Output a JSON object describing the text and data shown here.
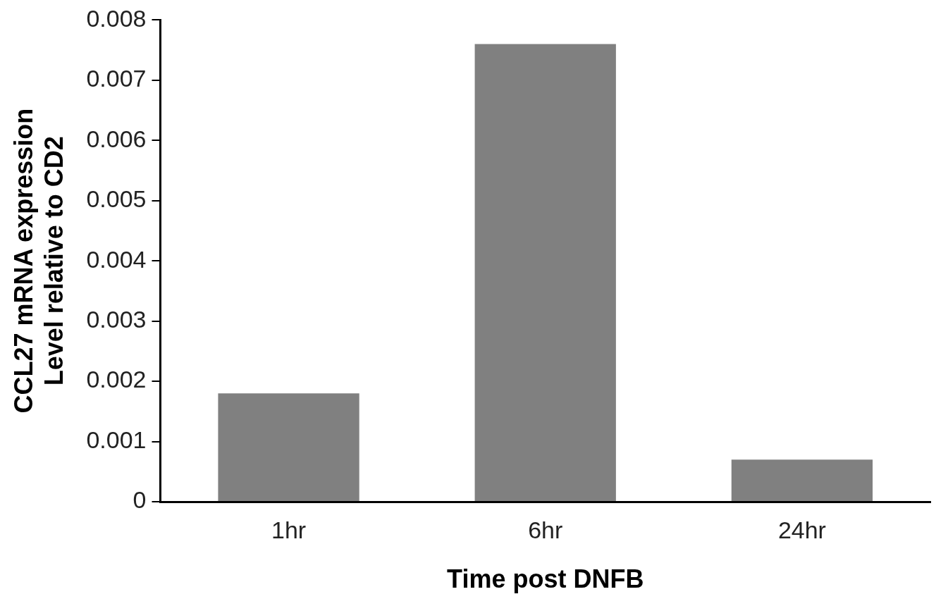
{
  "chart_data": {
    "type": "bar",
    "xlabel": "Time post DNFB",
    "ylabel": "CCL27 mRNA expression\nLevel relative to CD2",
    "categories": [
      "1hr",
      "6hr",
      "24hr"
    ],
    "values": [
      0.0018,
      0.0076,
      0.0007
    ],
    "color": "#808080",
    "ylim": [
      0,
      0.008
    ],
    "yticks": [
      0,
      0.001,
      0.002,
      0.003,
      0.004,
      0.005,
      0.006,
      0.007,
      0.008
    ],
    "grid": false
  }
}
